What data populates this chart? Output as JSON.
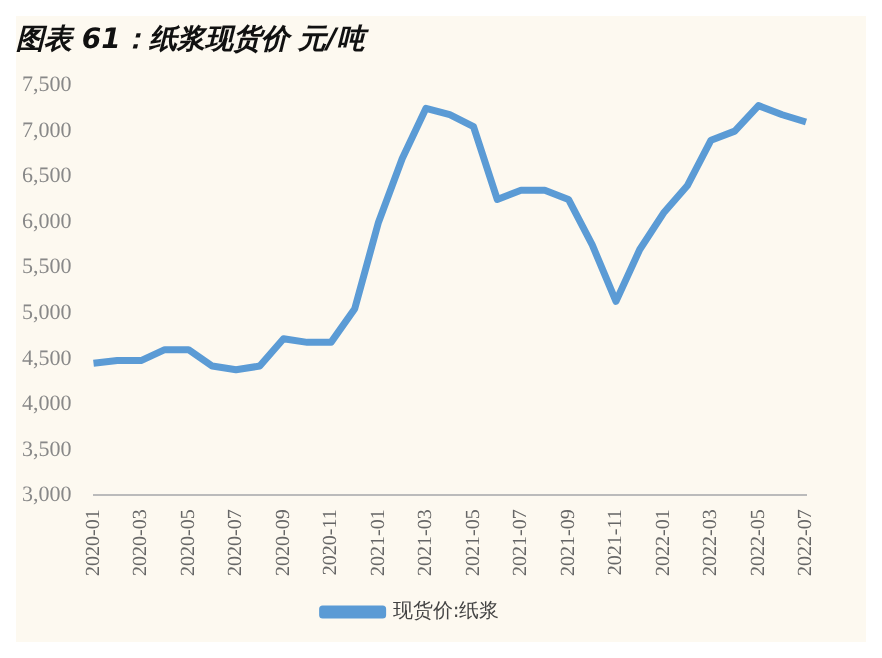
{
  "chart_data": {
    "type": "line",
    "title": "图表 61：纸浆现货价 元/吨",
    "categories": [
      "2020-01",
      null,
      "2020-03",
      null,
      "2020-05",
      null,
      "2020-07",
      null,
      "2020-09",
      null,
      "2020-11",
      null,
      "2021-01",
      null,
      "2021-03",
      null,
      "2021-05",
      null,
      "2021-07",
      null,
      "2021-09",
      null,
      "2021-11",
      null,
      "2022-01",
      null,
      "2022-03",
      null,
      "2022-05",
      null,
      "2022-07"
    ],
    "series": [
      {
        "name": "现货价:纸浆",
        "color": "#5b9bd5",
        "values": [
          4450,
          4480,
          4480,
          4600,
          4600,
          4420,
          4380,
          4420,
          4720,
          4680,
          4680,
          5050,
          6000,
          6700,
          7250,
          7180,
          7050,
          6250,
          6350,
          6350,
          6250,
          5750,
          5130,
          5700,
          6100,
          6400,
          6900,
          7000,
          7280,
          7180,
          7100
        ]
      }
    ],
    "ylim": [
      3000,
      7500
    ],
    "yticks": [
      {
        "value": 3000,
        "label": "3,000"
      },
      {
        "value": 3500,
        "label": "3,500"
      },
      {
        "value": 4000,
        "label": "4,000"
      },
      {
        "value": 4500,
        "label": "4,500"
      },
      {
        "value": 5000,
        "label": "5,000"
      },
      {
        "value": 5500,
        "label": "5,500"
      },
      {
        "value": 6000,
        "label": "6,000"
      },
      {
        "value": 6500,
        "label": "6,500"
      },
      {
        "value": 7000,
        "label": "7,000"
      },
      {
        "value": 7500,
        "label": "7,500"
      }
    ],
    "grid": false,
    "legend": "bottom",
    "marker": "none",
    "line_style": "solid"
  }
}
